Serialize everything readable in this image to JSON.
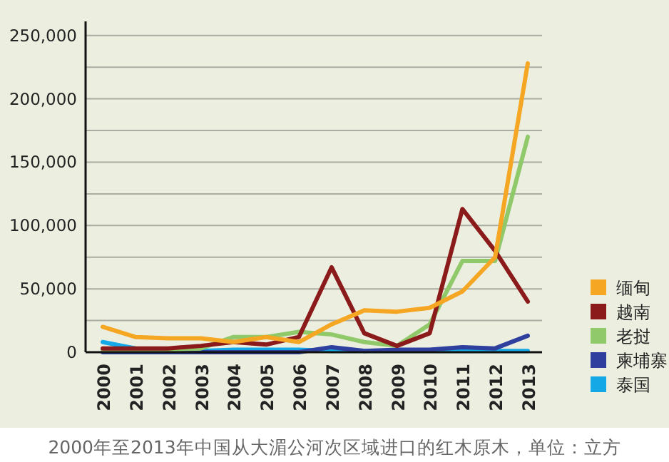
{
  "chart_data": {
    "type": "line",
    "categories": [
      "2000",
      "2001",
      "2002",
      "2003",
      "2004",
      "2005",
      "2006",
      "2007",
      "2008",
      "2009",
      "2010",
      "2011",
      "2012",
      "2013"
    ],
    "ylim": [
      0,
      260000
    ],
    "yticks": [
      0,
      {
        "value": 25000,
        "label": null
      },
      {
        "value": 50000,
        "label": "50,000"
      },
      {
        "value": 75000,
        "label": null
      },
      {
        "value": 100000,
        "label": "100,000"
      },
      {
        "value": 125000,
        "label": null
      },
      {
        "value": 150000,
        "label": "150,000"
      },
      {
        "value": 175000,
        "label": null
      },
      {
        "value": 200000,
        "label": "200,000"
      },
      {
        "value": 225000,
        "label": null
      },
      {
        "value": 250000,
        "label": "250,000"
      }
    ],
    "grid": "y",
    "legend": "right",
    "line_style": "solid",
    "marker": "none",
    "annotations": [
      "2000年至2013年中国从大湄公河次区域进口的红木原木，单位：立方"
    ],
    "series": [
      {
        "name": "缅甸",
        "color": "#f5a623",
        "values": [
          20000,
          12000,
          11000,
          11000,
          8000,
          12000,
          8000,
          22000,
          33000,
          32000,
          35000,
          48000,
          75000,
          228000
        ]
      },
      {
        "name": "越南",
        "color": "#8b1a1a",
        "values": [
          3000,
          3000,
          3000,
          5000,
          8000,
          6000,
          12000,
          67000,
          15000,
          5000,
          15000,
          113000,
          80000,
          40000
        ]
      },
      {
        "name": "老挝",
        "color": "#8fc96a",
        "values": [
          2000,
          2000,
          2000,
          3000,
          12000,
          12000,
          16000,
          14000,
          8000,
          5000,
          22000,
          72000,
          72000,
          170000
        ]
      },
      {
        "name": "柬埔寨",
        "color": "#2e3f9e",
        "values": [
          0,
          0,
          0,
          0,
          0,
          0,
          0,
          4000,
          1000,
          2000,
          2000,
          4000,
          3000,
          13000
        ]
      },
      {
        "name": "泰国",
        "color": "#14a9e6",
        "values": [
          8000,
          3000,
          2000,
          1000,
          2000,
          2000,
          2000,
          1000,
          1000,
          1000,
          1000,
          1000,
          1000,
          1000
        ]
      }
    ]
  }
}
